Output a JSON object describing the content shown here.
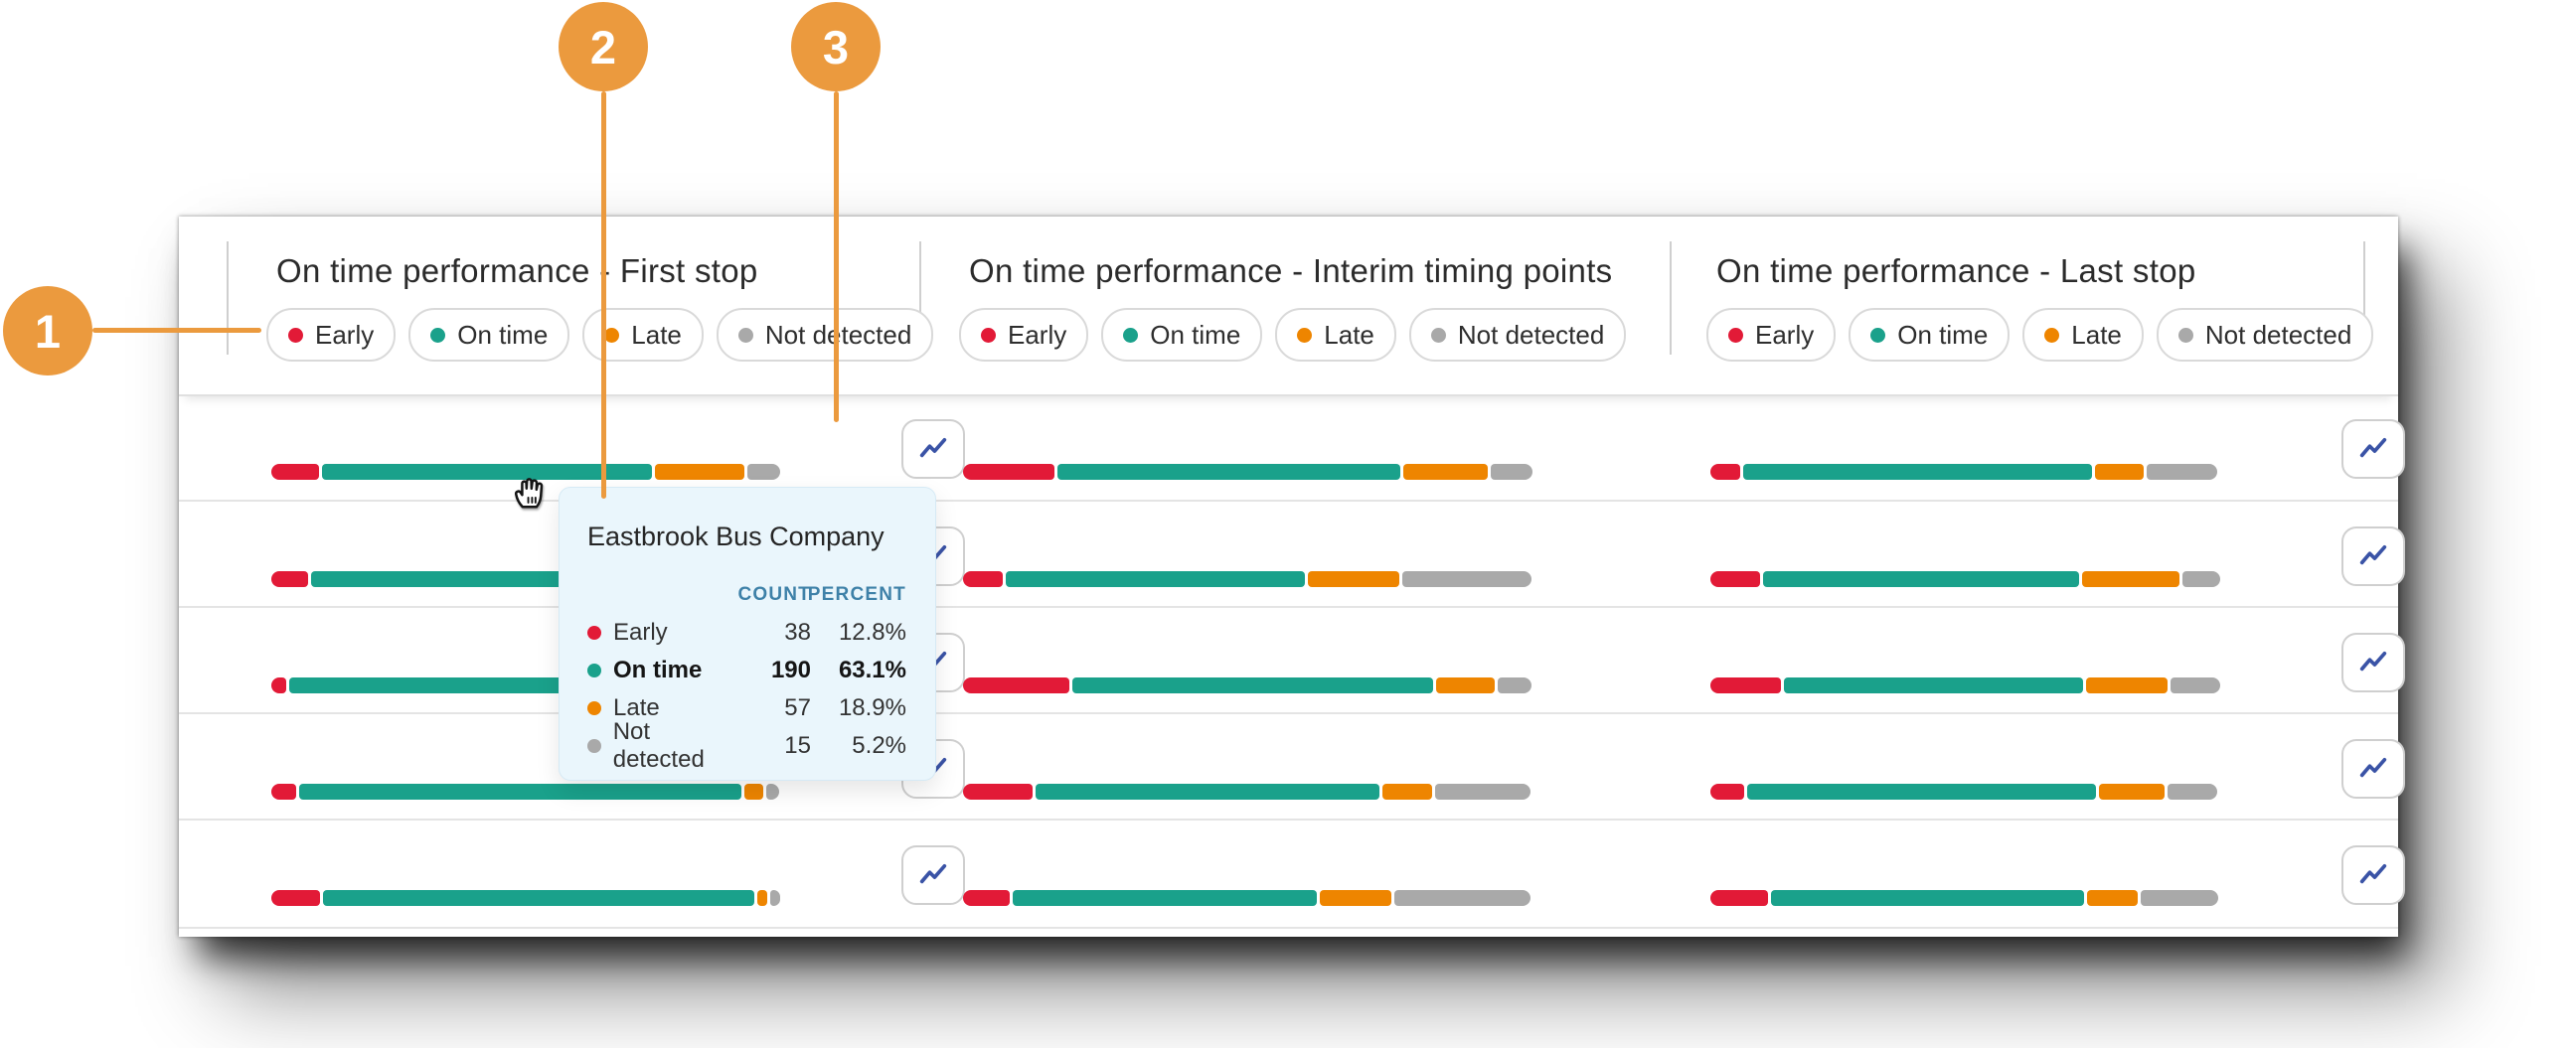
{
  "callouts": [
    {
      "number": "1"
    },
    {
      "number": "2"
    },
    {
      "number": "3"
    }
  ],
  "legend": {
    "items": [
      {
        "key": "early",
        "label": "Early"
      },
      {
        "key": "on_time",
        "label": "On time"
      },
      {
        "key": "late",
        "label": "Late"
      },
      {
        "key": "not_detected",
        "label": "Not detected"
      }
    ]
  },
  "colors": {
    "early": "#e21a37",
    "on_time": "#1aa18b",
    "late": "#ee8500",
    "not_detected": "#a9a9a9",
    "callout": "#eb9a3e",
    "tooltip_bg": "#eaf6fc",
    "tooltip_header_text": "#3e81a8",
    "trend_icon": "#3a53a6"
  },
  "icons": {
    "row_trend_button": "line-chart-icon",
    "legend_dot": "status-dot",
    "cursor": "grabbing-hand-cursor"
  },
  "tooltip": {
    "company": "Eastbrook Bus Company",
    "count_header": "COUNT",
    "percent_header": "PERCENT",
    "rows": [
      {
        "key": "early",
        "label": "Early",
        "count": "38",
        "percent": "12.8%",
        "emphasis": false
      },
      {
        "key": "on_time",
        "label": "On time",
        "count": "190",
        "percent": "63.1%",
        "emphasis": true
      },
      {
        "key": "late",
        "label": "Late",
        "count": "57",
        "percent": "18.9%",
        "emphasis": false
      },
      {
        "key": "not_detected",
        "label": "Not detected",
        "count": "15",
        "percent": "5.2%",
        "emphasis": false
      }
    ]
  },
  "chart_data": {
    "type": "bar",
    "stacked": true,
    "unit": "percent_of_row",
    "status_keys": [
      "early",
      "on_time",
      "late",
      "not_detected"
    ],
    "columns": [
      {
        "title": "On time performance - First stop",
        "rows": [
          {
            "early": 9.4,
            "on_time": 65.3,
            "late": 17.5,
            "not_detected": 6.5
          },
          {
            "early": 7.3,
            "on_time": 66.0,
            "late": 16.0,
            "not_detected": 7.0
          },
          {
            "early": 2.9,
            "on_time": 74.0,
            "late": 14.0,
            "not_detected": 6.0
          },
          {
            "early": 4.9,
            "on_time": 86.9,
            "late": 3.7,
            "not_detected": 2.5
          },
          {
            "early": 9.6,
            "on_time": 85.0,
            "late": 2.0,
            "not_detected": 2.0
          }
        ]
      },
      {
        "title": "On time performance - Interim timing points",
        "rows": [
          {
            "early": 16.0,
            "on_time": 60.3,
            "late": 14.9,
            "not_detected": 7.4
          },
          {
            "early": 7.0,
            "on_time": 52.5,
            "late": 16.1,
            "not_detected": 22.7
          },
          {
            "early": 18.6,
            "on_time": 63.3,
            "late": 10.3,
            "not_detected": 5.9
          },
          {
            "early": 12.3,
            "on_time": 60.4,
            "late": 8.7,
            "not_detected": 16.8
          },
          {
            "early": 8.2,
            "on_time": 53.4,
            "late": 12.5,
            "not_detected": 23.9
          }
        ]
      },
      {
        "title": "On time performance - Last stop",
        "rows": [
          {
            "early": 5.8,
            "on_time": 68.5,
            "late": 9.6,
            "not_detected": 13.8
          },
          {
            "early": 9.7,
            "on_time": 61.9,
            "late": 19.1,
            "not_detected": 7.4
          },
          {
            "early": 13.8,
            "on_time": 58.6,
            "late": 16.0,
            "not_detected": 9.8
          },
          {
            "early": 6.7,
            "on_time": 68.5,
            "late": 12.9,
            "not_detected": 9.8
          },
          {
            "early": 11.3,
            "on_time": 61.4,
            "late": 10.0,
            "not_detected": 15.3
          }
        ]
      }
    ]
  }
}
